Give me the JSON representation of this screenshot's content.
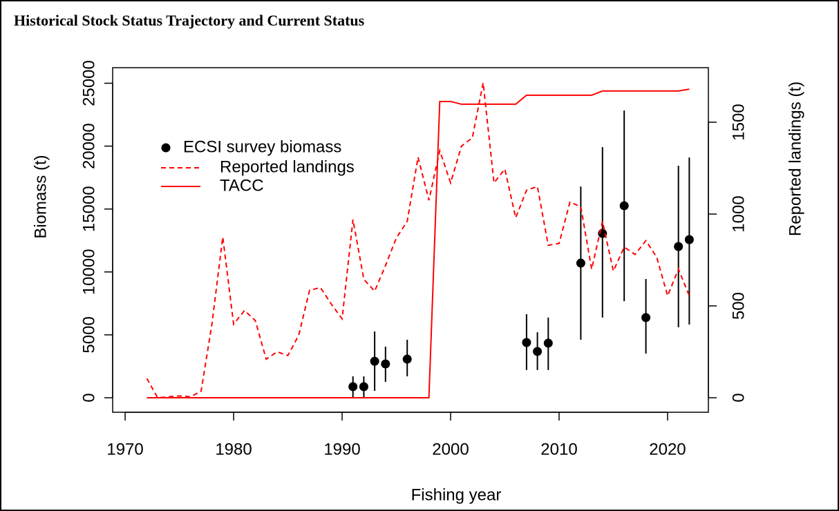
{
  "chart_data": {
    "type": "line",
    "title": "Historical Stock Status Trajectory and Current Status",
    "x_label": "Fishing year",
    "y_label": "Biomass (t)",
    "y2_label": "Reported landings (t)",
    "xlim": [
      1968.85,
      2023.76
    ],
    "xticks": [
      1970,
      1980,
      1990,
      2000,
      2010,
      2020
    ],
    "ylim": [
      -1153,
      26235
    ],
    "yticks": [
      0,
      5000,
      10000,
      15000,
      20000,
      25000
    ],
    "y2lim": [
      -79,
      1797
    ],
    "y2ticks": [
      0,
      500,
      1000,
      1500
    ],
    "series": [
      {
        "name": "ECSI survey biomass",
        "color": "#000000",
        "style": "points",
        "x": [
          1991,
          1992,
          1993,
          1994,
          1996,
          2007,
          2008,
          2009,
          2012,
          2014,
          2016,
          2018,
          2021,
          2022
        ],
        "values": [
          880,
          880,
          2900,
          2690,
          3070,
          4390,
          3680,
          4340,
          10700,
          13060,
          15260,
          6370,
          12020,
          12570
        ],
        "lower": [
          0,
          0,
          550,
          1260,
          1700,
          2200,
          2200,
          2200,
          4610,
          6370,
          7680,
          3510,
          5600,
          5820
        ],
        "upper": [
          1700,
          1700,
          5270,
          4060,
          4610,
          6640,
          5210,
          6370,
          16790,
          19920,
          22830,
          9440,
          18440,
          19100
        ]
      },
      {
        "name": "Reported landings",
        "color": "#ff0000",
        "style": "dashed",
        "axis": "y2",
        "x": [
          1972,
          1973,
          1974,
          1975,
          1976,
          1977,
          1978,
          1979,
          1980,
          1981,
          1982,
          1983,
          1984,
          1985,
          1986,
          1987,
          1988,
          1989,
          1990,
          1991,
          1992,
          1993,
          1994,
          1995,
          1996,
          1997,
          1998,
          1999,
          2000,
          2001,
          2002,
          2003,
          2004,
          2005,
          2006,
          2007,
          2008,
          2009,
          2010,
          2011,
          2012,
          2013,
          2014,
          2015,
          2016,
          2017,
          2018,
          2019,
          2020,
          2021,
          2022
        ],
        "values": [
          105,
          0,
          5,
          10,
          5,
          35,
          400,
          875,
          400,
          475,
          420,
          210,
          250,
          230,
          340,
          585,
          600,
          510,
          430,
          970,
          645,
          580,
          720,
          870,
          960,
          1310,
          1075,
          1345,
          1170,
          1370,
          1415,
          1715,
          1170,
          1245,
          980,
          1130,
          1150,
          830,
          840,
          1065,
          1040,
          700,
          960,
          690,
          820,
          780,
          855,
          765,
          555,
          700,
          555
        ]
      },
      {
        "name": "TACC",
        "color": "#ff0000",
        "style": "solid",
        "axis": "y2",
        "x": [
          1972,
          1973,
          1974,
          1975,
          1976,
          1977,
          1978,
          1979,
          1980,
          1981,
          1982,
          1983,
          1984,
          1985,
          1986,
          1987,
          1988,
          1989,
          1990,
          1991,
          1992,
          1993,
          1994,
          1995,
          1996,
          1997,
          1998,
          1999,
          2000,
          2001,
          2002,
          2003,
          2004,
          2005,
          2006,
          2007,
          2008,
          2009,
          2010,
          2011,
          2012,
          2013,
          2014,
          2015,
          2016,
          2017,
          2018,
          2019,
          2020,
          2021,
          2022
        ],
        "values": [
          0,
          0,
          0,
          0,
          0,
          0,
          0,
          0,
          0,
          0,
          0,
          0,
          0,
          0,
          0,
          0,
          0,
          0,
          0,
          0,
          0,
          0,
          0,
          0,
          0,
          0,
          0,
          1613,
          1613,
          1598,
          1598,
          1598,
          1598,
          1598,
          1598,
          1647,
          1647,
          1647,
          1647,
          1647,
          1647,
          1647,
          1670,
          1670,
          1670,
          1670,
          1670,
          1670,
          1670,
          1670,
          1680
        ]
      }
    ]
  }
}
